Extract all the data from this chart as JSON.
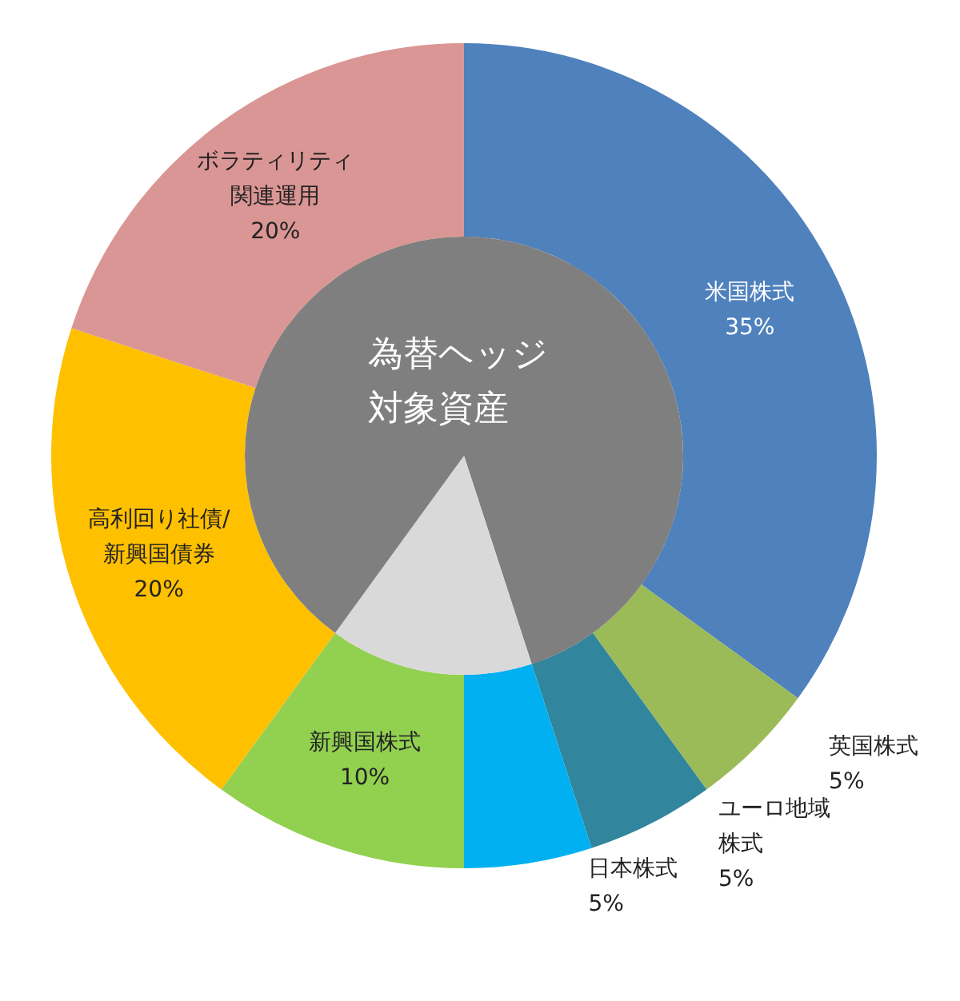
{
  "chart_data": [
    {
      "type": "donut",
      "categories": [
        "米国株式",
        "英国株式",
        "ユーロ地域株式",
        "日本株式",
        "新興国株式",
        "高利回り社債/新興国債券",
        "ボラティリティ関連運用"
      ],
      "values": [
        35,
        5,
        5,
        5,
        10,
        20,
        20
      ],
      "value_labels": [
        "35%",
        "5%",
        "5%",
        "5%",
        "10%",
        "20%",
        "20%"
      ],
      "colors": [
        "#4f81bd",
        "#9bbb59",
        "#31859c",
        "#00b0f0",
        "#92d050",
        "#ffc000",
        "#da9694"
      ],
      "legend": false
    },
    {
      "type": "pie",
      "categories": [
        "為替ヘッジ対象資産",
        null,
        null
      ],
      "values": [
        45,
        15,
        40
      ],
      "colors": [
        "#7f7f7f",
        "#d9d9d9",
        "#7f7f7f"
      ],
      "legend": false
    }
  ]
}
